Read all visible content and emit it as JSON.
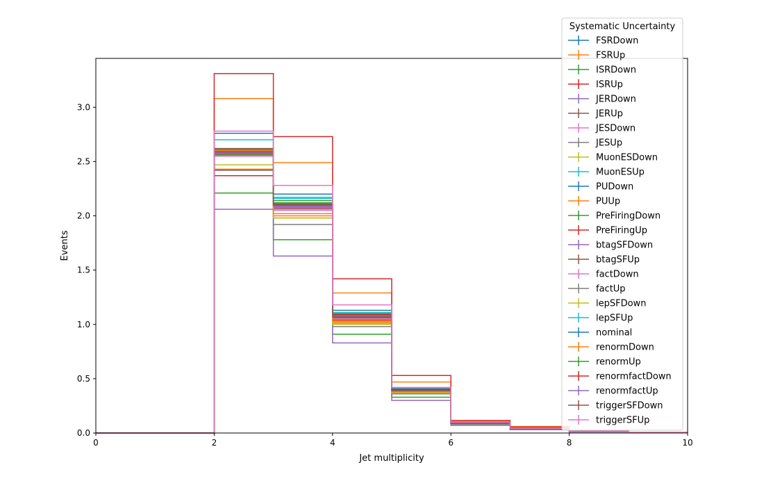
{
  "chart_data": {
    "type": "line",
    "style": "step-histogram",
    "title": "",
    "xlabel": "Jet multiplicity",
    "ylabel": "Events",
    "xlim": [
      0,
      10
    ],
    "ylim": [
      0,
      3.45
    ],
    "xticks": [
      "0",
      "2",
      "4",
      "6",
      "8",
      "10"
    ],
    "yticks": [
      "0.0",
      "0.5",
      "1.0",
      "1.5",
      "2.0",
      "2.5",
      "3.0"
    ],
    "bin_edges": [
      0,
      1,
      2,
      3,
      4,
      5,
      6,
      7,
      8,
      9,
      10
    ],
    "grid": false,
    "legend": {
      "title": "Systematic Uncertainty",
      "placement": "top-right, outside axes"
    },
    "series": [
      {
        "name": "FSRDown",
        "color": "#1f77b4",
        "values": [
          0,
          0,
          2.76,
          2.2,
          1.13,
          0.41,
          0.1,
          0.045,
          0.015,
          0.004
        ]
      },
      {
        "name": "FSRUp",
        "color": "#ff7f0e",
        "values": [
          0,
          0,
          3.08,
          2.49,
          1.29,
          0.47,
          0.11,
          0.06,
          0.025,
          0.006
        ]
      },
      {
        "name": "ISRDown",
        "color": "#2ca02c",
        "values": [
          0,
          0,
          2.21,
          1.78,
          0.91,
          0.33,
          0.08,
          0.035,
          0.012,
          0.003
        ]
      },
      {
        "name": "ISRUp",
        "color": "#d62728",
        "values": [
          0,
          0,
          3.31,
          2.73,
          1.42,
          0.53,
          0.115,
          0.055,
          0.02,
          0.005
        ]
      },
      {
        "name": "JERDown",
        "color": "#9467bd",
        "values": [
          0,
          0,
          2.58,
          2.08,
          1.07,
          0.38,
          0.09,
          0.04,
          0.015,
          0.004
        ]
      },
      {
        "name": "JERUp",
        "color": "#8c564b",
        "values": [
          0,
          0,
          2.56,
          2.07,
          1.06,
          0.38,
          0.09,
          0.04,
          0.015,
          0.004
        ]
      },
      {
        "name": "JESDown",
        "color": "#e377c2",
        "values": [
          0,
          0,
          2.6,
          2.06,
          1.05,
          0.37,
          0.085,
          0.038,
          0.014,
          0.004
        ]
      },
      {
        "name": "JESUp",
        "color": "#7f7f7f",
        "values": [
          0,
          0,
          2.55,
          1.92,
          0.98,
          0.36,
          0.09,
          0.04,
          0.015,
          0.004
        ]
      },
      {
        "name": "MuonESDown",
        "color": "#bcbd22",
        "values": [
          0,
          0,
          2.47,
          1.98,
          1.01,
          0.37,
          0.09,
          0.04,
          0.015,
          0.004
        ]
      },
      {
        "name": "MuonESUp",
        "color": "#17becf",
        "values": [
          0,
          0,
          2.7,
          2.17,
          1.11,
          0.4,
          0.1,
          0.044,
          0.016,
          0.004
        ]
      },
      {
        "name": "PUDown",
        "color": "#1f77b4",
        "values": [
          0,
          0,
          2.58,
          2.09,
          1.08,
          0.39,
          0.09,
          0.04,
          0.015,
          0.004
        ]
      },
      {
        "name": "PUUp",
        "color": "#ff7f0e",
        "values": [
          0,
          0,
          2.43,
          2.0,
          1.02,
          0.37,
          0.09,
          0.04,
          0.015,
          0.004
        ]
      },
      {
        "name": "PreFiringDown",
        "color": "#2ca02c",
        "values": [
          0,
          0,
          2.57,
          2.14,
          1.09,
          0.4,
          0.09,
          0.04,
          0.015,
          0.004
        ]
      },
      {
        "name": "PreFiringUp",
        "color": "#d62728",
        "values": [
          0,
          0,
          2.37,
          2.05,
          1.04,
          0.38,
          0.09,
          0.04,
          0.015,
          0.004
        ]
      },
      {
        "name": "btagSFDown",
        "color": "#9467bd",
        "values": [
          0,
          0,
          2.06,
          1.63,
          0.83,
          0.3,
          0.07,
          0.03,
          0.01,
          0.003
        ]
      },
      {
        "name": "btagSFUp",
        "color": "#8c564b",
        "values": [
          0,
          0,
          2.62,
          2.11,
          1.09,
          0.4,
          0.09,
          0.04,
          0.015,
          0.004
        ]
      },
      {
        "name": "factDown",
        "color": "#e377c2",
        "values": [
          0,
          0,
          2.55,
          2.05,
          1.05,
          0.38,
          0.09,
          0.04,
          0.015,
          0.004
        ]
      },
      {
        "name": "factUp",
        "color": "#7f7f7f",
        "values": [
          0,
          0,
          2.59,
          2.09,
          1.07,
          0.39,
          0.09,
          0.04,
          0.015,
          0.004
        ]
      },
      {
        "name": "lepSFDown",
        "color": "#bcbd22",
        "values": [
          0,
          0,
          2.42,
          1.98,
          1.0,
          0.37,
          0.09,
          0.04,
          0.015,
          0.004
        ]
      },
      {
        "name": "lepSFUp",
        "color": "#17becf",
        "values": [
          0,
          0,
          2.61,
          2.16,
          1.1,
          0.4,
          0.09,
          0.04,
          0.015,
          0.004
        ]
      },
      {
        "name": "nominal",
        "color": "#1f77b4",
        "values": [
          0,
          0,
          2.58,
          2.1,
          1.08,
          0.39,
          0.09,
          0.04,
          0.015,
          0.004
        ]
      },
      {
        "name": "renormDown",
        "color": "#ff7f0e",
        "values": [
          0,
          0,
          2.6,
          2.02,
          1.03,
          0.38,
          0.09,
          0.04,
          0.015,
          0.004
        ]
      },
      {
        "name": "renormUp",
        "color": "#2ca02c",
        "values": [
          0,
          0,
          2.61,
          2.12,
          1.1,
          0.4,
          0.09,
          0.04,
          0.015,
          0.004
        ]
      },
      {
        "name": "renormfactDown",
        "color": "#d62728",
        "values": [
          0,
          0,
          2.59,
          2.1,
          1.09,
          0.4,
          0.09,
          0.04,
          0.015,
          0.004
        ]
      },
      {
        "name": "renormfactUp",
        "color": "#9467bd",
        "values": [
          0,
          0,
          2.58,
          2.09,
          1.08,
          0.39,
          0.09,
          0.04,
          0.015,
          0.004
        ]
      },
      {
        "name": "triggerSFDown",
        "color": "#8c564b",
        "values": [
          0,
          0,
          2.42,
          2.1,
          1.07,
          0.39,
          0.09,
          0.04,
          0.015,
          0.004
        ]
      },
      {
        "name": "triggerSFUp",
        "color": "#e377c2",
        "values": [
          0,
          0,
          2.78,
          2.28,
          1.18,
          0.42,
          0.1,
          0.045,
          0.016,
          0.004
        ]
      }
    ]
  }
}
